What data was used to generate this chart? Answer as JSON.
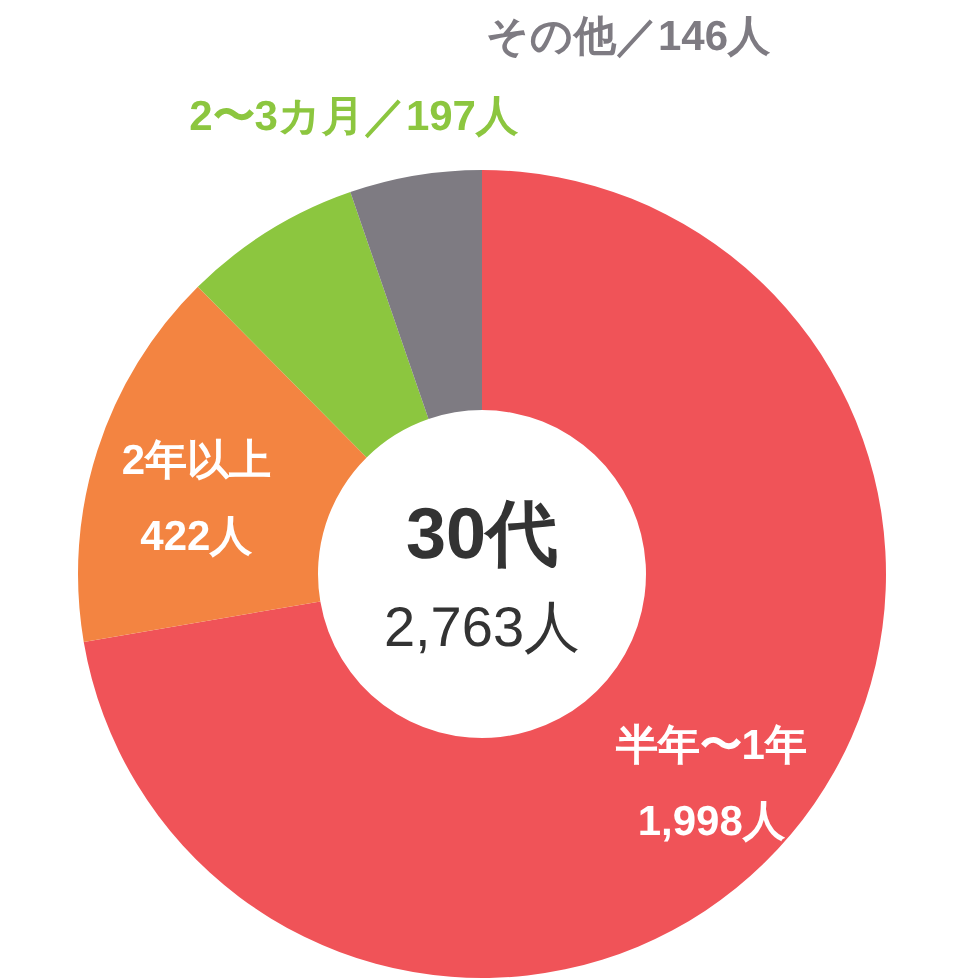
{
  "chart_data": {
    "type": "donut",
    "title": "30代",
    "subtitle": "2,763人",
    "categories": [
      "半年〜1年",
      "2年以上",
      "2〜3カ月／",
      "その他／"
    ],
    "values": [
      1998,
      422,
      197,
      146
    ],
    "colors": [
      "#f05358",
      "#f38441",
      "#8cc63f",
      "#7e7b82"
    ],
    "value_labels": [
      "1,998人",
      "422人",
      "197人",
      "146人"
    ]
  }
}
